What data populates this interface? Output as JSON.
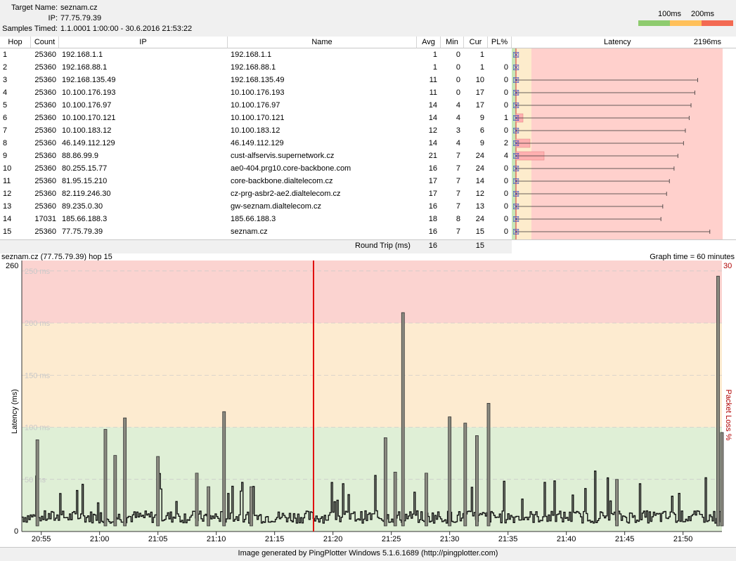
{
  "header": {
    "target_label": "Target Name:",
    "target_value": "seznam.cz",
    "ip_label": "IP:",
    "ip_value": "77.75.79.39",
    "samples_label": "Samples Timed:",
    "samples_value": "1.1.0001 1:00:00 - 30.6.2016 21:53:22",
    "legend_100": "100ms",
    "legend_200": "200ms",
    "legend_colors": [
      "#8ecb6e",
      "#ffc05a",
      "#f36a52"
    ]
  },
  "table": {
    "columns": [
      "Hop",
      "Count",
      "IP",
      "Name",
      "Avg",
      "Min",
      "Cur",
      "PL%",
      "Latency"
    ],
    "latency_max": "2196ms",
    "rows": [
      {
        "hop": "1",
        "count": "25360",
        "ip": "192.168.1.1",
        "name": "192.168.1.1",
        "avg": "1",
        "min": "0",
        "cur": "1",
        "pl": "",
        "max": 0
      },
      {
        "hop": "2",
        "count": "25360",
        "ip": "192.168.88.1",
        "name": "192.168.88.1",
        "avg": "1",
        "min": "0",
        "cur": "1",
        "pl": "0",
        "max": 0
      },
      {
        "hop": "3",
        "count": "25360",
        "ip": "192.168.135.49",
        "name": "192.168.135.49",
        "avg": "11",
        "min": "0",
        "cur": "10",
        "pl": "0",
        "max": 1930
      },
      {
        "hop": "4",
        "count": "25360",
        "ip": "10.100.176.193",
        "name": "10.100.176.193",
        "avg": "11",
        "min": "0",
        "cur": "17",
        "pl": "0",
        "max": 1900
      },
      {
        "hop": "5",
        "count": "25360",
        "ip": "10.100.176.97",
        "name": "10.100.176.97",
        "avg": "14",
        "min": "4",
        "cur": "17",
        "pl": "0",
        "max": 1860
      },
      {
        "hop": "6",
        "count": "25360",
        "ip": "10.100.170.121",
        "name": "10.100.170.121",
        "avg": "14",
        "min": "4",
        "cur": "9",
        "pl": "1",
        "max": 1840
      },
      {
        "hop": "7",
        "count": "25360",
        "ip": "10.100.183.12",
        "name": "10.100.183.12",
        "avg": "12",
        "min": "3",
        "cur": "6",
        "pl": "0",
        "max": 1800
      },
      {
        "hop": "8",
        "count": "25360",
        "ip": "46.149.112.129",
        "name": "46.149.112.129",
        "avg": "14",
        "min": "4",
        "cur": "9",
        "pl": "2",
        "max": 1780
      },
      {
        "hop": "9",
        "count": "25360",
        "ip": "88.86.99.9",
        "name": "cust-alfservis.supernetwork.cz",
        "avg": "21",
        "min": "7",
        "cur": "24",
        "pl": "4",
        "max": 1720
      },
      {
        "hop": "10",
        "count": "25360",
        "ip": "80.255.15.77",
        "name": "ae0-404.prg10.core-backbone.com",
        "avg": "16",
        "min": "7",
        "cur": "24",
        "pl": "0",
        "max": 1680
      },
      {
        "hop": "11",
        "count": "25360",
        "ip": "81.95.15.210",
        "name": "core-backbone.dialtelecom.cz",
        "avg": "17",
        "min": "7",
        "cur": "14",
        "pl": "0",
        "max": 1630
      },
      {
        "hop": "12",
        "count": "25360",
        "ip": "82.119.246.30",
        "name": "cz-prg-asbr2-ae2.dialtelecom.cz",
        "avg": "17",
        "min": "7",
        "cur": "12",
        "pl": "0",
        "max": 1600
      },
      {
        "hop": "13",
        "count": "25360",
        "ip": "89.235.0.30",
        "name": "gw-seznam.dialtelecom.cz",
        "avg": "16",
        "min": "7",
        "cur": "13",
        "pl": "0",
        "max": 1560
      },
      {
        "hop": "14",
        "count": "17031",
        "ip": "185.66.188.3",
        "name": "185.66.188.3",
        "avg": "18",
        "min": "8",
        "cur": "24",
        "pl": "0",
        "max": 1540
      },
      {
        "hop": "15",
        "count": "25360",
        "ip": "77.75.79.39",
        "name": "seznam.cz",
        "avg": "16",
        "min": "7",
        "cur": "15",
        "pl": "0",
        "max": 2060
      }
    ],
    "round_trip_label": "Round Trip (ms)",
    "round_trip_avg": "16",
    "round_trip_cur": "15"
  },
  "graph": {
    "title": "seznam.cz (77.75.79.39) hop 15",
    "graph_time": "Graph time = 60 minutes",
    "y_max_label": "260",
    "y_min_label": "0",
    "right_max_label": "30",
    "ylabel": "Latency (ms)",
    "right_label": "Packet Loss %",
    "band_labels": [
      "250 ms",
      "200 ms",
      "150 ms",
      "100 ms",
      "50 ms"
    ],
    "x_ticks": [
      "20:55",
      "21:00",
      "21:05",
      "21:10",
      "21:15",
      "21:20",
      "21:25",
      "21:30",
      "21:35",
      "21:40",
      "21:45",
      "21:50"
    ],
    "cursor_time": "21:18:20"
  },
  "chart_data": {
    "type": "line",
    "title": "seznam.cz (77.75.79.39) hop 15",
    "xlabel": "",
    "ylabel": "Latency (ms)",
    "ylim": [
      0,
      260
    ],
    "x_range": [
      "20:53:20",
      "21:53:20"
    ],
    "spikes": [
      {
        "t": "20:54:40",
        "ms": 88
      },
      {
        "t": "21:00:30",
        "ms": 98
      },
      {
        "t": "21:01:20",
        "ms": 73
      },
      {
        "t": "21:02:10",
        "ms": 109
      },
      {
        "t": "21:05:00",
        "ms": 72
      },
      {
        "t": "21:08:20",
        "ms": 56
      },
      {
        "t": "21:09:20",
        "ms": 43
      },
      {
        "t": "21:10:40",
        "ms": 115
      },
      {
        "t": "21:13:00",
        "ms": 43
      },
      {
        "t": "21:24:30",
        "ms": 90
      },
      {
        "t": "21:25:20",
        "ms": 57
      },
      {
        "t": "21:26:00",
        "ms": 210
      },
      {
        "t": "21:28:00",
        "ms": 56
      },
      {
        "t": "21:30:00",
        "ms": 110
      },
      {
        "t": "21:31:20",
        "ms": 104
      },
      {
        "t": "21:32:20",
        "ms": 92
      },
      {
        "t": "21:33:20",
        "ms": 123
      },
      {
        "t": "21:44:20",
        "ms": 50
      },
      {
        "t": "21:53:00",
        "ms": 245
      },
      {
        "t": "21:53:20",
        "ms": 95
      }
    ]
  }
}
